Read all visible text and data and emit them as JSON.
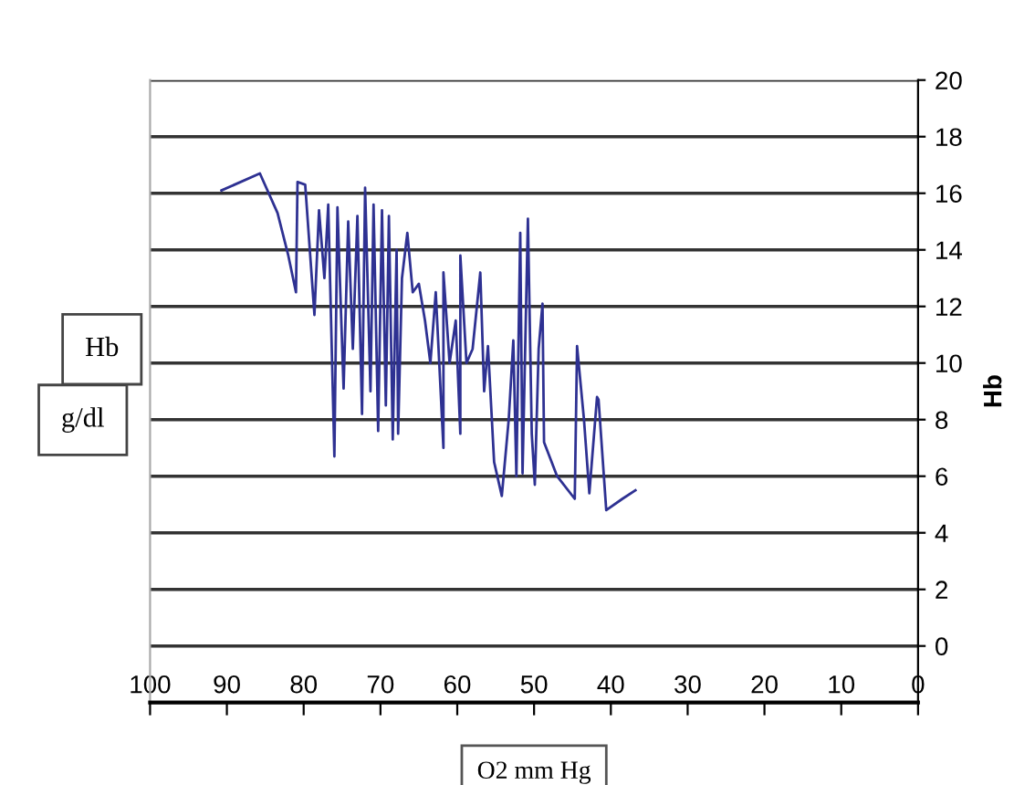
{
  "chart_data": {
    "type": "line",
    "x": [
      90.7,
      85.7,
      83.4,
      82.0,
      81.0,
      80.8,
      79.8,
      78.6,
      78.0,
      77.3,
      76.8,
      76.0,
      75.6,
      74.8,
      74.2,
      73.6,
      73.0,
      72.4,
      72.0,
      71.3,
      70.9,
      70.3,
      69.8,
      69.3,
      68.9,
      68.4,
      67.9,
      67.7,
      67.2,
      66.5,
      65.8,
      65.0,
      64.2,
      63.5,
      62.8,
      61.8,
      61.8,
      61.0,
      60.2,
      59.6,
      59.6,
      58.8,
      58.0,
      57.0,
      56.5,
      56.0,
      55.2,
      54.2,
      53.3,
      52.7,
      52.3,
      51.8,
      51.5,
      50.8,
      50.3,
      49.9,
      49.4,
      48.9,
      48.7,
      47.0,
      44.7,
      44.4,
      43.5,
      42.8,
      41.8,
      41.6,
      40.6,
      38.5,
      36.8
    ],
    "series": [
      {
        "color": "#2e3192",
        "values": [
          16.1,
          16.7,
          15.3,
          13.8,
          12.5,
          16.4,
          16.3,
          11.7,
          15.4,
          13.0,
          15.6,
          6.7,
          15.5,
          9.1,
          15.0,
          10.5,
          15.2,
          8.2,
          16.2,
          9.0,
          15.6,
          7.6,
          15.4,
          8.5,
          15.2,
          7.3,
          14.0,
          7.5,
          13.0,
          14.6,
          12.5,
          12.8,
          11.5,
          10.0,
          12.5,
          7.0,
          13.2,
          10.0,
          11.5,
          7.5,
          13.8,
          10.0,
          10.5,
          13.2,
          9.0,
          10.6,
          6.5,
          5.3,
          8.0,
          10.8,
          6.0,
          14.6,
          6.1,
          15.1,
          7.5,
          5.7,
          10.5,
          12.1,
          7.2,
          6.0,
          5.2,
          10.6,
          8.0,
          5.4,
          8.8,
          8.7,
          4.8,
          5.2,
          5.5
        ]
      }
    ],
    "xlim": [
      100,
      0
    ],
    "xticks": [
      100,
      90,
      80,
      70,
      60,
      50,
      40,
      30,
      20,
      10,
      0
    ],
    "ylim": [
      -2,
      20
    ],
    "yticks": [
      0,
      2,
      4,
      6,
      8,
      10,
      12,
      14,
      16,
      18,
      20
    ],
    "xlabel": "O2 mm Hg",
    "ylabel": "Hb",
    "annotations": [
      "Hb",
      "g/dl"
    ],
    "grid": "y",
    "marker": "none",
    "line_style": "solid"
  }
}
